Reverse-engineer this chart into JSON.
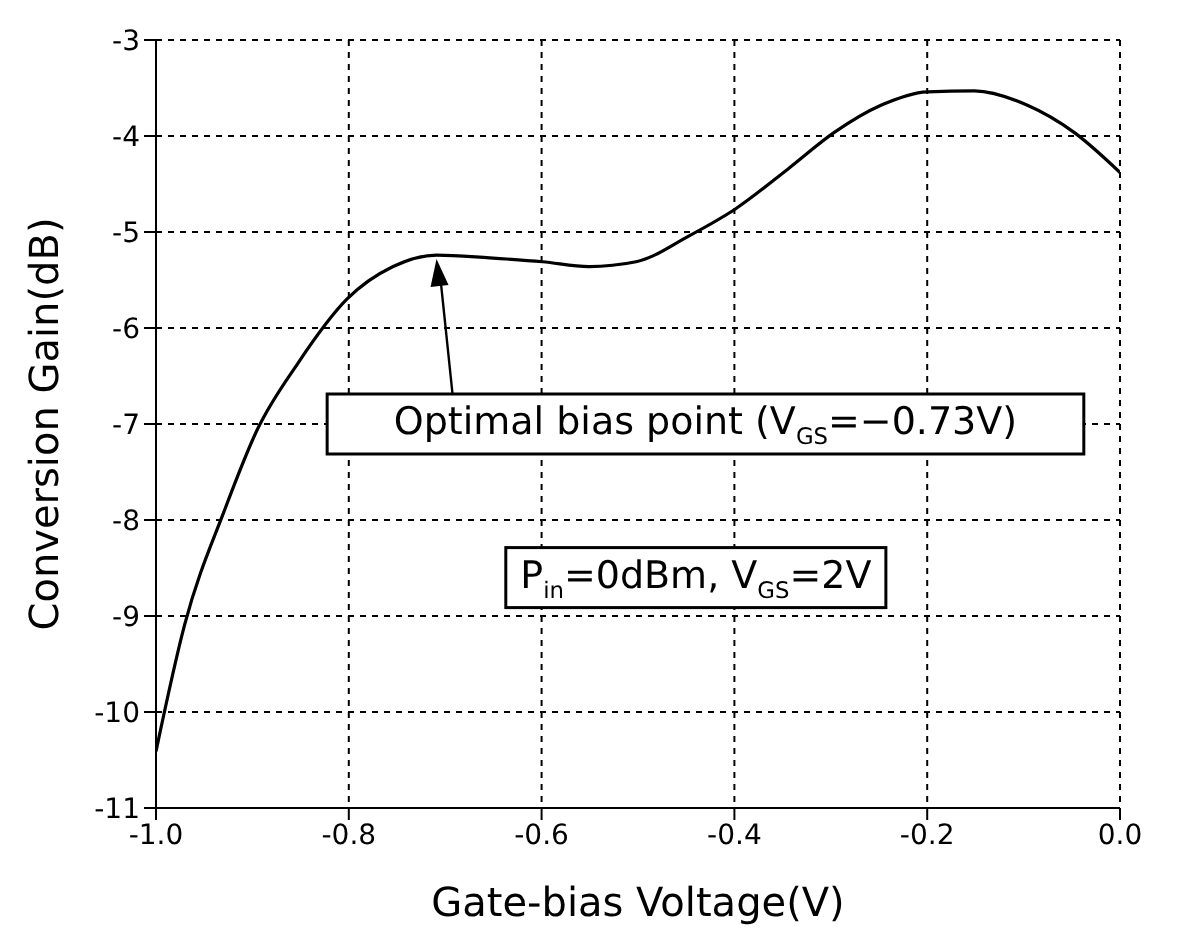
{
  "chart_data": {
    "type": "line",
    "xlabel": "Gate-bias Voltage(V)",
    "ylabel": "Conversion Gain(dB)",
    "x": [
      -1.0,
      -0.97,
      -0.929,
      -0.895,
      -0.853,
      -0.802,
      -0.754,
      -0.709,
      -0.654,
      -0.599,
      -0.551,
      -0.502,
      -0.447,
      -0.399,
      -0.344,
      -0.296,
      -0.248,
      -0.2,
      -0.151,
      -0.096,
      -0.048,
      0.0
    ],
    "series": [
      {
        "color": "#000000",
        "values": [
          -10.41,
          -9.08,
          -7.9,
          -7.06,
          -6.37,
          -5.7,
          -5.36,
          -5.24,
          -5.27,
          -5.31,
          -5.36,
          -5.31,
          -5.04,
          -4.76,
          -4.34,
          -3.96,
          -3.68,
          -3.54,
          -3.53,
          -3.68,
          -3.96,
          -4.38
        ]
      }
    ],
    "xlim": [
      -1,
      0
    ],
    "xticks": [
      {
        "value": -1,
        "label": "-1.0"
      },
      {
        "value": -0.8,
        "label": "-0.8"
      },
      {
        "value": -0.6,
        "label": "-0.6"
      },
      {
        "value": -0.4,
        "label": "-0.4"
      },
      {
        "value": -0.2,
        "label": "-0.2"
      },
      {
        "value": 0,
        "label": "0.0"
      }
    ],
    "ylim": [
      -11,
      -3
    ],
    "yticks": [
      -11,
      -10,
      -9,
      -8,
      -7,
      -6,
      -5,
      -4,
      -3
    ],
    "grid": true,
    "line_style": "solid",
    "annotations": [
      "Optimal bias point (V$_{GS}$=−0.73V)",
      "P$_{in}$=0dBm, V$_{GS}$=2V"
    ]
  }
}
